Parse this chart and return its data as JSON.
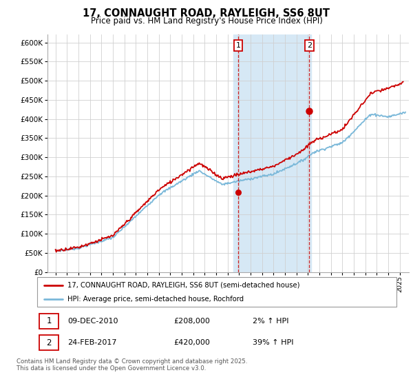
{
  "title": "17, CONNAUGHT ROAD, RAYLEIGH, SS6 8UT",
  "subtitle": "Price paid vs. HM Land Registry's House Price Index (HPI)",
  "legend_line1": "17, CONNAUGHT ROAD, RAYLEIGH, SS6 8UT (semi-detached house)",
  "legend_line2": "HPI: Average price, semi-detached house, Rochford",
  "footnote": "Contains HM Land Registry data © Crown copyright and database right 2025.\nThis data is licensed under the Open Government Licence v3.0.",
  "annotation1_label": "1",
  "annotation1_date": "09-DEC-2010",
  "annotation1_price": "£208,000",
  "annotation1_pct": "2% ↑ HPI",
  "annotation2_label": "2",
  "annotation2_date": "24-FEB-2017",
  "annotation2_price": "£420,000",
  "annotation2_pct": "39% ↑ HPI",
  "hpi_color": "#7ab8d9",
  "price_color": "#cc0000",
  "annotation_color": "#cc0000",
  "background_shaded": "#d6e8f5",
  "ylim": [
    0,
    620000
  ],
  "yticks": [
    0,
    50000,
    100000,
    150000,
    200000,
    250000,
    300000,
    350000,
    400000,
    450000,
    500000,
    550000,
    600000
  ],
  "ytick_labels": [
    "£0",
    "£50K",
    "£100K",
    "£150K",
    "£200K",
    "£250K",
    "£300K",
    "£350K",
    "£400K",
    "£450K",
    "£500K",
    "£550K",
    "£600K"
  ],
  "ann1_x": 2010.92,
  "ann2_x": 2017.12,
  "ann1_y": 208000,
  "ann2_y": 420000,
  "shade_x1": 2010.5,
  "shade_x2": 2017.3,
  "xlim_left": 1994.3,
  "xlim_right": 2025.8
}
